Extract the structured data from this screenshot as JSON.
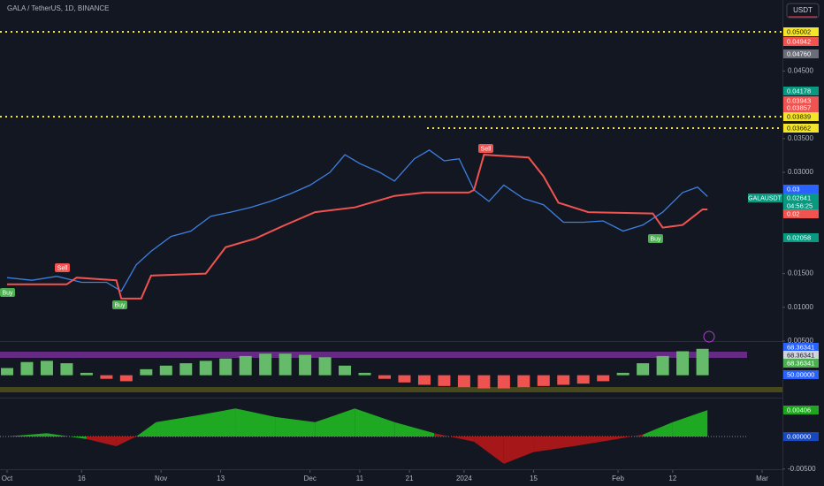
{
  "header": {
    "title": "GALA / TetherUS, 1D, BINANCE",
    "currency_button": "USDT"
  },
  "symbol_tag": "GALAUSDT",
  "price_tags": [
    {
      "label": "0.05002",
      "color": "#f5e52a"
    },
    {
      "label": "0.04942",
      "color": "#f05350"
    },
    {
      "label": "0.04760",
      "color": "#6b6e78"
    },
    {
      "label": "0.04178",
      "color": "#089981"
    },
    {
      "label": "0.03943",
      "color": "#f05350"
    },
    {
      "label": "0.03857",
      "color": "#f05350"
    },
    {
      "label": "0.03839",
      "color": "#f5e52a"
    },
    {
      "label": "0.03662",
      "color": "#f5e52a"
    },
    {
      "label": "0.03",
      "color": "#2962ff"
    },
    {
      "label": "0.02641",
      "color": "#089981"
    },
    {
      "label": "04:56:25",
      "color": "#089981"
    },
    {
      "label": "0.02",
      "color": "#f05350"
    },
    {
      "label": "0.02058",
      "color": "#089981"
    },
    {
      "label": "68.36341",
      "color": "#2962ff"
    },
    {
      "label": "68.36341",
      "color": "#d1d4dc"
    },
    {
      "label": "68.36341",
      "color": "#4caf50"
    },
    {
      "label": "50.00000",
      "color": "#2962ff"
    },
    {
      "label": "0.00406",
      "color": "#1ea61e"
    },
    {
      "label": "0.00000",
      "color": "#1848c0"
    }
  ],
  "signals": [
    {
      "label": "Buy",
      "color": "#4caf50"
    },
    {
      "label": "Sell",
      "color": "#f05350"
    },
    {
      "label": "Buy",
      "color": "#4caf50"
    },
    {
      "label": "Sell",
      "color": "#f05350"
    },
    {
      "label": "Buy",
      "color": "#4caf50"
    }
  ],
  "chart_data": [
    {
      "type": "line",
      "title": "GALA / TetherUS, 1D, BINANCE",
      "ylim": [
        0.005,
        0.055
      ],
      "yticks": [
        {
          "value": 0.045,
          "label": "0.04500"
        },
        {
          "value": 0.035,
          "label": "0.03500"
        },
        {
          "value": 0.03,
          "label": "0.03000"
        },
        {
          "value": 0.015,
          "label": "0.01500"
        },
        {
          "value": 0.01,
          "label": "0.01000"
        },
        {
          "value": 0.005,
          "label": "0.00500"
        }
      ],
      "xlim": [
        0,
        152
      ],
      "xticks": [
        {
          "value": 0,
          "label": "Oct"
        },
        {
          "value": 15,
          "label": "16"
        },
        {
          "value": 31,
          "label": "Nov"
        },
        {
          "value": 43,
          "label": "13"
        },
        {
          "value": 61,
          "label": "Dec"
        },
        {
          "value": 71,
          "label": "11"
        },
        {
          "value": 81,
          "label": "21"
        },
        {
          "value": 92,
          "label": "2024"
        },
        {
          "value": 106,
          "label": "15"
        },
        {
          "value": 123,
          "label": "Feb"
        },
        {
          "value": 134,
          "label": "12"
        },
        {
          "value": 152,
          "label": "Mar"
        }
      ],
      "series": [
        {
          "color": "#3d7fe0",
          "x": [
            0,
            5,
            10,
            15,
            20,
            23,
            26,
            29,
            33,
            37,
            41,
            45,
            49,
            53,
            57,
            61,
            65,
            68,
            71,
            75,
            78,
            82,
            85,
            88,
            91,
            94,
            97,
            100,
            104,
            108,
            112,
            116,
            120,
            124,
            128,
            132,
            136,
            139,
            141
          ],
          "values": [
            0.0144,
            0.014,
            0.0146,
            0.0137,
            0.0137,
            0.0124,
            0.0163,
            0.0183,
            0.0205,
            0.0213,
            0.0235,
            0.0241,
            0.0248,
            0.0257,
            0.0268,
            0.0281,
            0.03,
            0.0326,
            0.0313,
            0.03,
            0.0287,
            0.032,
            0.0333,
            0.0317,
            0.032,
            0.0274,
            0.0257,
            0.0281,
            0.0261,
            0.0252,
            0.0226,
            0.0226,
            0.0228,
            0.0213,
            0.0222,
            0.0241,
            0.027,
            0.0278,
            0.02641
          ]
        },
        {
          "color": "#f05350",
          "x": [
            0,
            12,
            14,
            22,
            23,
            27,
            29,
            40,
            44,
            50,
            56,
            62,
            70,
            78,
            84,
            93,
            94,
            96,
            105,
            108,
            111,
            117,
            130,
            132,
            136,
            140,
            141
          ],
          "values": [
            0.0134,
            0.0134,
            0.0144,
            0.014,
            0.0113,
            0.0113,
            0.0147,
            0.015,
            0.0189,
            0.0202,
            0.0222,
            0.0241,
            0.0248,
            0.0265,
            0.027,
            0.027,
            0.0274,
            0.0326,
            0.0322,
            0.0294,
            0.0255,
            0.0241,
            0.0239,
            0.0218,
            0.0222,
            0.0245,
            0.0245
          ]
        }
      ]
    },
    {
      "type": "bar",
      "ylim": [
        35,
        77
      ],
      "base": 50,
      "colors": {
        "up": "#66bb6a",
        "down": "#ef5350"
      },
      "x": [
        0,
        4,
        8,
        12,
        16,
        20,
        24,
        28,
        32,
        36,
        40,
        44,
        48,
        52,
        56,
        60,
        64,
        68,
        72,
        76,
        80,
        84,
        88,
        92,
        96,
        100,
        104,
        108,
        112,
        116,
        120,
        124,
        128,
        132,
        136,
        140
      ],
      "values": [
        56,
        61,
        62,
        60,
        52,
        47,
        45,
        55,
        58,
        60,
        62,
        64,
        66,
        68,
        68,
        67,
        65,
        58,
        52,
        47,
        44,
        42,
        41,
        40,
        39,
        39,
        40,
        41,
        42,
        43,
        45,
        52,
        60,
        66,
        70,
        72
      ]
    },
    {
      "type": "area",
      "ylim": [
        -0.0053,
        0.0057
      ],
      "colors": {
        "up": "#22c322",
        "down": "#c01818"
      },
      "yticks": [
        {
          "value": -0.005,
          "label": "-0.00500"
        }
      ],
      "x": [
        0,
        8,
        16,
        22,
        26,
        30,
        38,
        46,
        54,
        62,
        70,
        78,
        86,
        94,
        100,
        106,
        114,
        122,
        128,
        134,
        141
      ],
      "values": [
        0,
        0.0005,
        -0.0004,
        -0.0015,
        0,
        0.0022,
        0.0032,
        0.0043,
        0.003,
        0.0022,
        0.0043,
        0.0022,
        0.0005,
        -0.0008,
        -0.0042,
        -0.0024,
        -0.0015,
        -0.0005,
        0.0003,
        0.0022,
        0.00406
      ]
    }
  ]
}
